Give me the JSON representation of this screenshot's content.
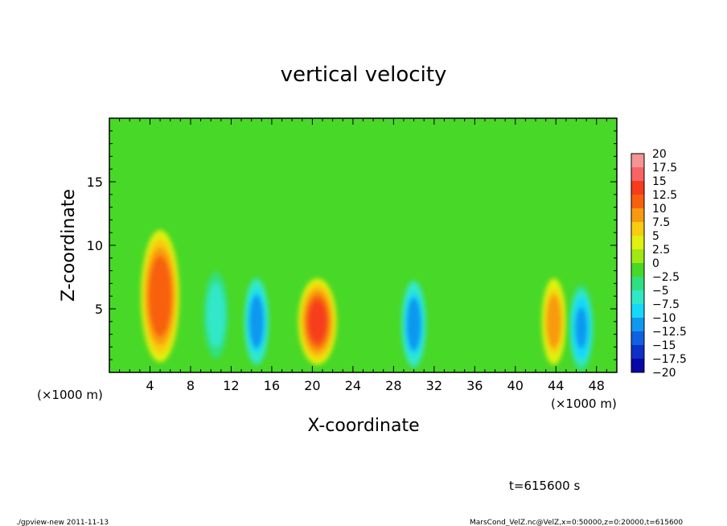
{
  "chart_data": {
    "type": "heatmap",
    "title": "vertical velocity",
    "xlabel": "X-coordinate",
    "ylabel": "Z-coordinate",
    "x_unit_left": "(×1000 m)",
    "x_unit_right": "(×1000 m)",
    "xlim": [
      0,
      50
    ],
    "ylim": [
      0,
      20
    ],
    "x_ticks": [
      "4",
      "8",
      "12",
      "16",
      "20",
      "24",
      "28",
      "32",
      "36",
      "40",
      "44",
      "48"
    ],
    "x_tick_values": [
      4,
      8,
      12,
      16,
      20,
      24,
      28,
      32,
      36,
      40,
      44,
      48
    ],
    "y_ticks": [
      "5",
      "10",
      "15"
    ],
    "y_tick_values": [
      5,
      10,
      15
    ],
    "colorbar": {
      "labels": [
        "20",
        "17.5",
        "15",
        "12.5",
        "10",
        "7.5",
        "5",
        "2.5",
        "0",
        "−2.5",
        "−5",
        "−7.5",
        "−10",
        "−12.5",
        "−15",
        "−17.5",
        "−20"
      ],
      "values": [
        20,
        17.5,
        15,
        12.5,
        10,
        7.5,
        5,
        2.5,
        0,
        -2.5,
        -5,
        -7.5,
        -10,
        -12.5,
        -15,
        -17.5,
        -20
      ],
      "colors": [
        "#f39595",
        "#f86464",
        "#f63c1c",
        "#f86010",
        "#f89a10",
        "#f8cc10",
        "#e0f010",
        "#a0e814",
        "#48d828",
        "#30e080",
        "#30e8c8",
        "#18d8f8",
        "#1098f0",
        "#1060e0",
        "#0c30c8",
        "#0808a8",
        "#6010b0"
      ]
    },
    "cells": [
      {
        "x": 5.0,
        "z": 6.0,
        "value": 13.5,
        "note": "updraft"
      },
      {
        "x": 20.5,
        "z": 4.0,
        "value": 14.5,
        "note": "updraft"
      },
      {
        "x": 43.8,
        "z": 4.0,
        "value": 10.5,
        "note": "updraft"
      },
      {
        "x": 14.5,
        "z": 4.0,
        "value": -11,
        "note": "downdraft"
      },
      {
        "x": 30.0,
        "z": 3.8,
        "value": -11,
        "note": "downdraft"
      },
      {
        "x": 46.5,
        "z": 3.5,
        "value": -9,
        "note": "downdraft"
      },
      {
        "x": 10.5,
        "z": 4.5,
        "value": -6,
        "note": "downdraft"
      }
    ],
    "grid": false,
    "legend_placement": "right"
  },
  "footer": {
    "time": "t=615600 s",
    "program": "./gpview-new   2011-11-13",
    "source": "MarsCond_VelZ.nc@VelZ,x=0:50000,z=0:20000,t=615600"
  }
}
